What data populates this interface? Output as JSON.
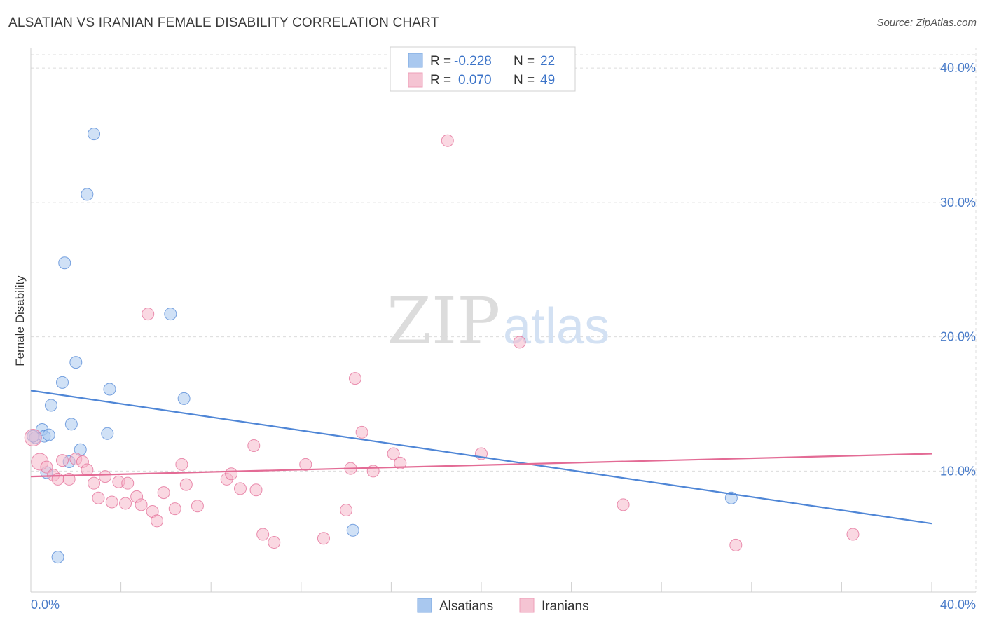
{
  "header": {
    "title": "ALSATIAN VS IRANIAN FEMALE DISABILITY CORRELATION CHART",
    "source": "Source: ZipAtlas.com"
  },
  "watermark": {
    "zip": "ZIP",
    "atlas": "atlas"
  },
  "legend_top": {
    "rows": [
      {
        "r_label": "R =",
        "r_value": "-0.228",
        "n_label": "N =",
        "n_value": "22",
        "color": "#a9c8ef"
      },
      {
        "r_label": "R =",
        "r_value": "0.070",
        "n_label": "N =",
        "n_value": "49",
        "color": "#f5b8cb"
      }
    ]
  },
  "legend_bottom": {
    "items": [
      {
        "label": "Alsatians",
        "color": "#a9c8ef"
      },
      {
        "label": "Iranians",
        "color": "#f5b8cb"
      }
    ]
  },
  "chart_data": {
    "type": "scatter",
    "title": "ALSATIAN VS IRANIAN FEMALE DISABILITY CORRELATION CHART",
    "xlabel": "",
    "ylabel": "Female Disability",
    "xlim": [
      0,
      40
    ],
    "ylim": [
      1,
      41
    ],
    "x_tick_labels": [
      "0.0%",
      "40.0%"
    ],
    "y_ticks": [
      10,
      20,
      30,
      40
    ],
    "y_tick_labels": [
      "10.0%",
      "20.0%",
      "30.0%",
      "40.0%"
    ],
    "grid": true,
    "legend_placement": "top-center",
    "series": [
      {
        "name": "Alsatians",
        "color": "#4f86d6",
        "fill": "#a9c8ef",
        "r": -0.228,
        "n": 22,
        "trend": {
          "x": [
            0,
            40
          ],
          "y": [
            16.0,
            6.1
          ]
        },
        "points": [
          {
            "x": 0.2,
            "y": 12.5
          },
          {
            "x": 0.5,
            "y": 13.1
          },
          {
            "x": 0.6,
            "y": 12.6
          },
          {
            "x": 0.8,
            "y": 12.7
          },
          {
            "x": 0.7,
            "y": 9.9
          },
          {
            "x": 0.9,
            "y": 14.9
          },
          {
            "x": 1.2,
            "y": 3.6
          },
          {
            "x": 1.4,
            "y": 16.6
          },
          {
            "x": 1.5,
            "y": 25.5
          },
          {
            "x": 1.7,
            "y": 10.7
          },
          {
            "x": 1.8,
            "y": 13.5
          },
          {
            "x": 2.0,
            "y": 18.1
          },
          {
            "x": 2.2,
            "y": 11.6
          },
          {
            "x": 2.5,
            "y": 30.6
          },
          {
            "x": 2.8,
            "y": 35.1
          },
          {
            "x": 3.4,
            "y": 12.8
          },
          {
            "x": 3.5,
            "y": 16.1
          },
          {
            "x": 6.2,
            "y": 21.7
          },
          {
            "x": 6.8,
            "y": 15.4
          },
          {
            "x": 14.3,
            "y": 5.6
          },
          {
            "x": 31.1,
            "y": 8.0
          },
          {
            "x": 0.1,
            "y": 12.6
          }
        ]
      },
      {
        "name": "Iranians",
        "color": "#e36b95",
        "fill": "#f5b8cb",
        "r": 0.07,
        "n": 49,
        "trend": {
          "x": [
            0,
            40
          ],
          "y": [
            9.6,
            11.3
          ]
        },
        "points": [
          {
            "x": 0.1,
            "y": 12.5
          },
          {
            "x": 0.4,
            "y": 10.7
          },
          {
            "x": 0.7,
            "y": 10.3
          },
          {
            "x": 1.0,
            "y": 9.7
          },
          {
            "x": 1.2,
            "y": 9.4
          },
          {
            "x": 1.4,
            "y": 10.8
          },
          {
            "x": 1.7,
            "y": 9.4
          },
          {
            "x": 2.0,
            "y": 10.9
          },
          {
            "x": 2.3,
            "y": 10.7
          },
          {
            "x": 2.5,
            "y": 10.1
          },
          {
            "x": 2.8,
            "y": 9.1
          },
          {
            "x": 3.0,
            "y": 8.0
          },
          {
            "x": 3.3,
            "y": 9.6
          },
          {
            "x": 3.6,
            "y": 7.7
          },
          {
            "x": 3.9,
            "y": 9.2
          },
          {
            "x": 4.2,
            "y": 7.6
          },
          {
            "x": 4.3,
            "y": 9.1
          },
          {
            "x": 4.7,
            "y": 8.1
          },
          {
            "x": 4.9,
            "y": 7.5
          },
          {
            "x": 5.2,
            "y": 21.7
          },
          {
            "x": 5.4,
            "y": 7.0
          },
          {
            "x": 5.6,
            "y": 6.3
          },
          {
            "x": 5.9,
            "y": 8.4
          },
          {
            "x": 6.4,
            "y": 7.2
          },
          {
            "x": 6.7,
            "y": 10.5
          },
          {
            "x": 6.9,
            "y": 9.0
          },
          {
            "x": 7.4,
            "y": 7.4
          },
          {
            "x": 8.7,
            "y": 9.4
          },
          {
            "x": 8.9,
            "y": 9.8
          },
          {
            "x": 9.3,
            "y": 8.7
          },
          {
            "x": 9.9,
            "y": 11.9
          },
          {
            "x": 10.0,
            "y": 8.6
          },
          {
            "x": 10.3,
            "y": 5.3
          },
          {
            "x": 10.8,
            "y": 4.7
          },
          {
            "x": 12.2,
            "y": 10.5
          },
          {
            "x": 13.0,
            "y": 5.0
          },
          {
            "x": 14.0,
            "y": 7.1
          },
          {
            "x": 14.2,
            "y": 10.2
          },
          {
            "x": 14.4,
            "y": 16.9
          },
          {
            "x": 14.7,
            "y": 12.9
          },
          {
            "x": 15.2,
            "y": 10.0
          },
          {
            "x": 16.1,
            "y": 11.3
          },
          {
            "x": 16.4,
            "y": 10.6
          },
          {
            "x": 18.5,
            "y": 34.6
          },
          {
            "x": 20.0,
            "y": 11.3
          },
          {
            "x": 21.7,
            "y": 19.6
          },
          {
            "x": 26.3,
            "y": 7.5
          },
          {
            "x": 31.3,
            "y": 4.5
          },
          {
            "x": 36.5,
            "y": 5.3
          }
        ]
      }
    ]
  }
}
